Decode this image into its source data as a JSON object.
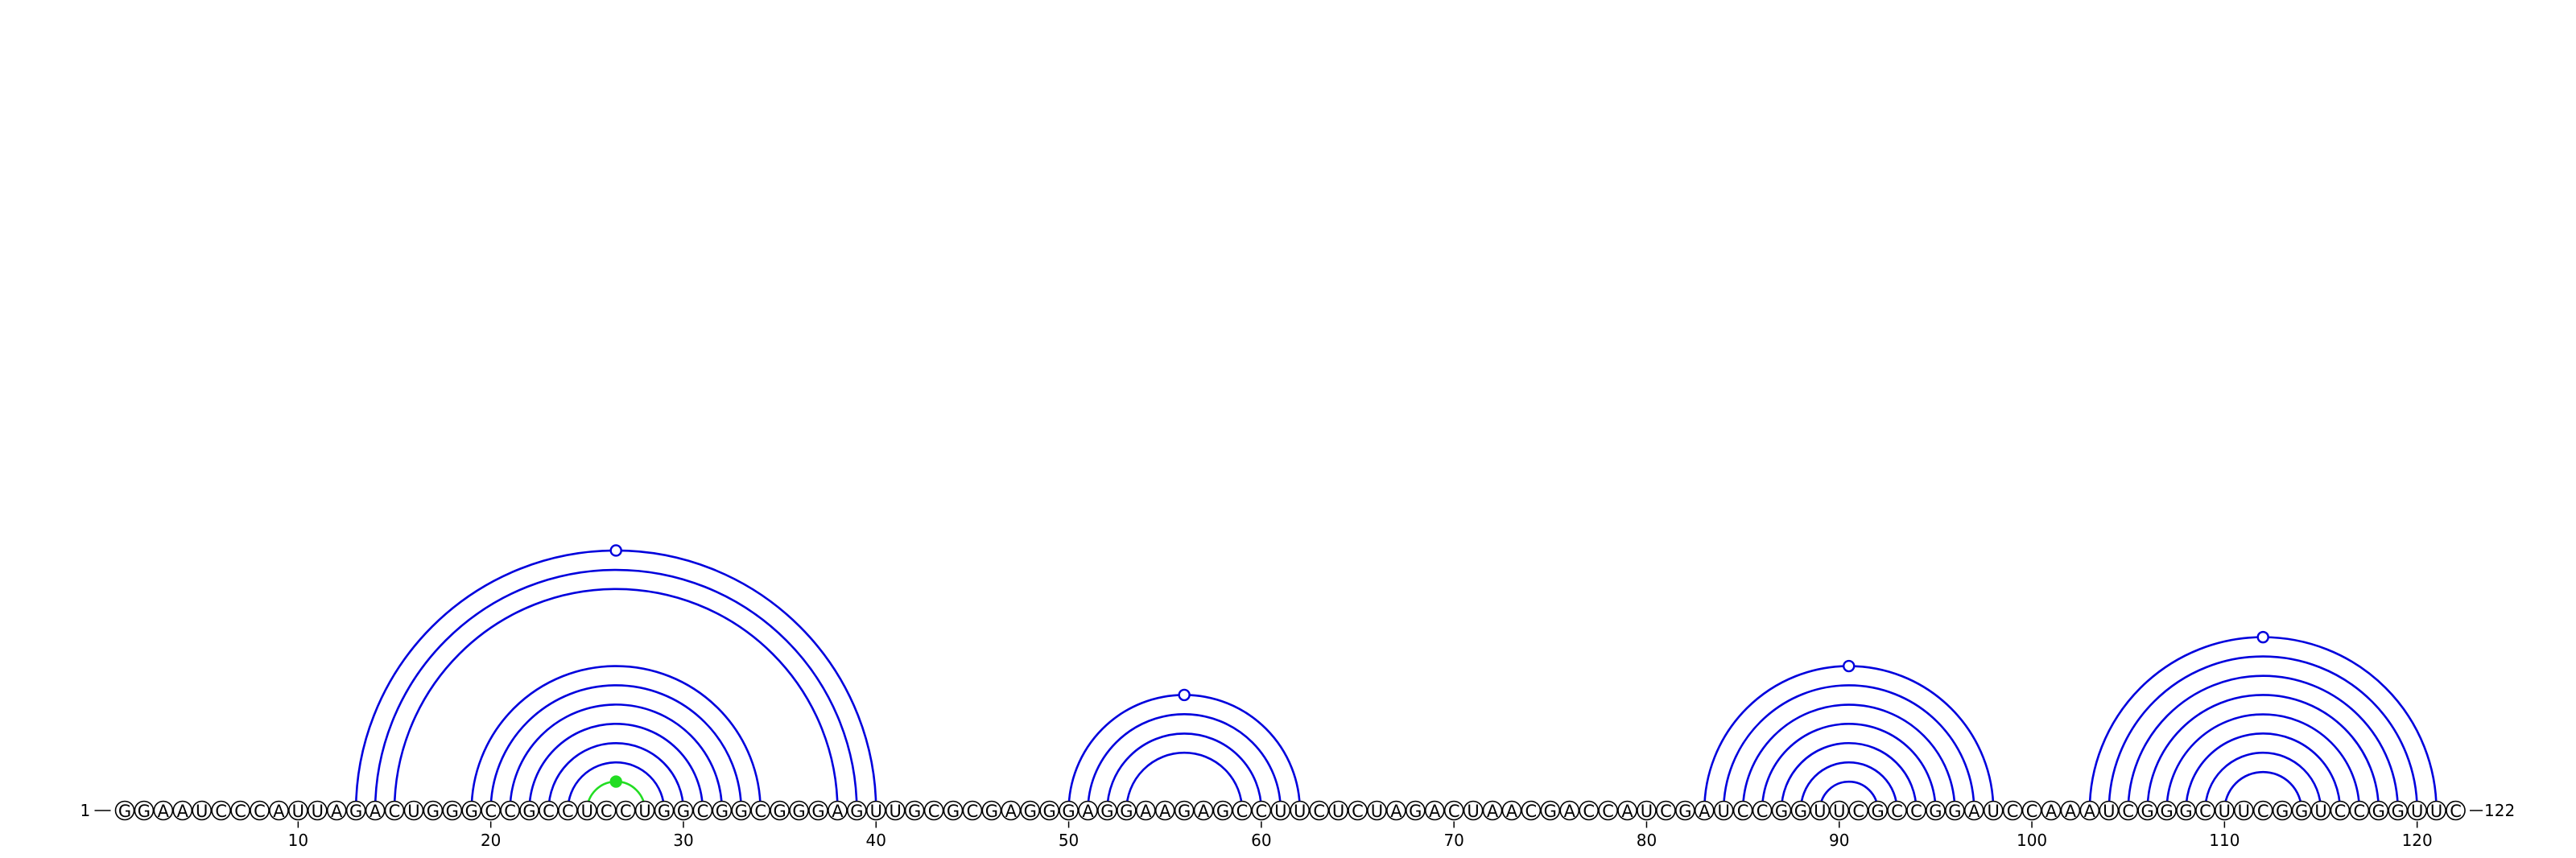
{
  "diagram": {
    "sequence": "GGAAUCCCAUUAGACUGGGCCGCCUCCUGGCGGCGGGAGUUGCGCGAGGGAGGAAGAGCCUUCUCUAGACUAACGACCAUCGAUCCGGUUCGCCGGAUCCAAAUCGGGCUUCGGUCCGGUUC",
    "start_label": "1",
    "end_label": "122",
    "ticks": [
      10,
      20,
      30,
      40,
      50,
      60,
      70,
      80,
      90,
      100,
      110,
      120
    ],
    "colors": {
      "pair": "#0000dd",
      "highlight": "#22dd22",
      "text": "#000000"
    },
    "stems": [
      {
        "pairs": [
          [
            13,
            40
          ],
          [
            14,
            39
          ],
          [
            15,
            38
          ]
        ],
        "color": "pair",
        "apex_marker": "open"
      },
      {
        "pairs": [
          [
            19,
            34
          ],
          [
            20,
            33
          ],
          [
            21,
            32
          ],
          [
            22,
            31
          ],
          [
            23,
            30
          ],
          [
            24,
            29
          ]
        ],
        "color": "pair",
        "apex_marker": "none"
      },
      {
        "pairs": [
          [
            25,
            28
          ]
        ],
        "color": "highlight",
        "apex_marker": "filled"
      },
      {
        "pairs": [
          [
            50,
            62
          ],
          [
            51,
            61
          ],
          [
            52,
            60
          ],
          [
            53,
            59
          ]
        ],
        "color": "pair",
        "apex_marker": "open"
      },
      {
        "pairs": [
          [
            83,
            98
          ],
          [
            84,
            97
          ],
          [
            85,
            96
          ],
          [
            86,
            95
          ],
          [
            87,
            94
          ],
          [
            88,
            93
          ],
          [
            89,
            92
          ]
        ],
        "color": "pair",
        "apex_marker": "open"
      },
      {
        "pairs": [
          [
            103,
            121
          ],
          [
            104,
            120
          ],
          [
            105,
            119
          ],
          [
            106,
            118
          ],
          [
            107,
            117
          ],
          [
            108,
            116
          ],
          [
            109,
            115
          ],
          [
            110,
            114
          ]
        ],
        "color": "pair",
        "apex_marker": "open"
      }
    ]
  }
}
